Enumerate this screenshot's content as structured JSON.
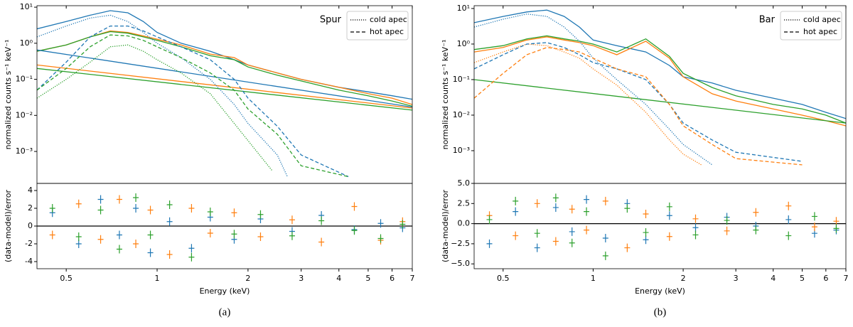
{
  "chart_data": [
    {
      "type": "line",
      "xlog": true,
      "ylog": true,
      "annotation": "Spur",
      "ylabel": "normalized counts s⁻¹ keV⁻¹",
      "xlim": [
        0.4,
        7
      ],
      "ylim": [
        0.00013,
        11
      ],
      "yticks": [
        {
          "value": 0.001,
          "label": "10⁻³"
        },
        {
          "value": 0.01,
          "label": "10⁻²"
        },
        {
          "value": 0.1,
          "label": "10⁻¹"
        },
        {
          "value": 1,
          "label": "10⁰"
        },
        {
          "value": 10,
          "label": "10¹"
        }
      ],
      "legend": [
        {
          "label": "cold apec",
          "dash": "dotted"
        },
        {
          "label": "hot apec",
          "dash": "dashed"
        }
      ],
      "series": [
        {
          "color": "#1f77b4",
          "dash": "solid",
          "x": [
            0.4,
            0.5,
            0.6,
            0.7,
            0.8,
            0.9,
            1,
            1.2,
            1.5,
            1.8,
            2,
            2.5,
            3,
            4,
            5,
            6,
            7
          ],
          "values": [
            2.5,
            4,
            6,
            8,
            7,
            4,
            2,
            1,
            0.6,
            0.35,
            0.25,
            0.15,
            0.1,
            0.06,
            0.045,
            0.035,
            0.028
          ]
        },
        {
          "color": "#ff7f0e",
          "dash": "solid",
          "x": [
            0.4,
            0.5,
            0.6,
            0.7,
            0.8,
            0.9,
            1,
            1.2,
            1.5,
            1.8,
            2,
            2.5,
            3,
            4,
            5,
            6,
            7
          ],
          "values": [
            0.6,
            0.9,
            1.5,
            2.2,
            2,
            1.6,
            1.3,
            0.9,
            0.5,
            0.4,
            0.25,
            0.15,
            0.1,
            0.06,
            0.04,
            0.03,
            0.02
          ]
        },
        {
          "color": "#2ca02c",
          "dash": "solid",
          "x": [
            0.4,
            0.5,
            0.6,
            0.7,
            0.8,
            0.9,
            1,
            1.2,
            1.5,
            1.8,
            2,
            2.5,
            3,
            4,
            5,
            6,
            7
          ],
          "values": [
            0.6,
            0.9,
            1.5,
            2.1,
            1.9,
            1.5,
            1.2,
            0.8,
            0.45,
            0.35,
            0.22,
            0.13,
            0.09,
            0.05,
            0.035,
            0.025,
            0.018
          ]
        },
        {
          "color": "#1f77b4",
          "dash": "solid",
          "x": [
            0.4,
            7
          ],
          "values": [
            0.65,
            0.017
          ]
        },
        {
          "color": "#ff7f0e",
          "dash": "solid",
          "x": [
            0.4,
            7
          ],
          "values": [
            0.25,
            0.016
          ]
        },
        {
          "color": "#2ca02c",
          "dash": "solid",
          "x": [
            0.4,
            7
          ],
          "values": [
            0.2,
            0.014
          ]
        },
        {
          "color": "#1f77b4",
          "dash": "dotted",
          "x": [
            0.4,
            0.5,
            0.6,
            0.7,
            0.8,
            0.9,
            1,
            1.2,
            1.5,
            1.8,
            2,
            2.5,
            2.7
          ],
          "values": [
            1.5,
            3,
            5,
            6,
            4,
            2,
            1,
            0.4,
            0.1,
            0.02,
            0.006,
            0.0008,
            0.0002
          ]
        },
        {
          "color": "#2ca02c",
          "dash": "dotted",
          "x": [
            0.4,
            0.5,
            0.6,
            0.7,
            0.8,
            0.9,
            1,
            1.2,
            1.5,
            1.8,
            2,
            2.4
          ],
          "values": [
            0.03,
            0.1,
            0.3,
            0.8,
            0.9,
            0.6,
            0.35,
            0.15,
            0.04,
            0.006,
            0.002,
            0.0003
          ]
        },
        {
          "color": "#1f77b4",
          "dash": "dashed",
          "x": [
            0.4,
            0.5,
            0.6,
            0.7,
            0.8,
            0.9,
            1,
            1.2,
            1.5,
            1.8,
            2,
            2.5,
            3,
            4.3
          ],
          "values": [
            0.05,
            0.3,
            1.5,
            3,
            3,
            2.2,
            1.5,
            0.8,
            0.35,
            0.1,
            0.03,
            0.005,
            0.0008,
            0.0002
          ]
        },
        {
          "color": "#2ca02c",
          "dash": "dashed",
          "x": [
            0.4,
            0.5,
            0.6,
            0.7,
            0.8,
            0.9,
            1,
            1.2,
            1.5,
            1.8,
            2,
            2.5,
            3,
            4.3
          ],
          "values": [
            0.05,
            0.2,
            0.8,
            1.7,
            1.6,
            1.2,
            0.8,
            0.4,
            0.15,
            0.05,
            0.015,
            0.003,
            0.0004,
            0.0002
          ]
        }
      ]
    },
    {
      "type": "scatter",
      "xlog": true,
      "ylabel": "(data-model)/error",
      "xlabel": "Energy (keV)",
      "caption": "(a)",
      "xlim": [
        0.4,
        7
      ],
      "ylim": [
        -4.8,
        4.8
      ],
      "reference_line": 0,
      "xticks": [
        0.5,
        1,
        2,
        3,
        4,
        5,
        6,
        7
      ],
      "yticks": [
        -4,
        -2,
        0,
        2,
        4
      ],
      "x": [
        0.45,
        0.55,
        0.65,
        0.75,
        0.85,
        0.95,
        1.1,
        1.3,
        1.5,
        1.8,
        2.2,
        2.8,
        3.5,
        4.5,
        5.5,
        6.5
      ],
      "series": [
        {
          "color": "#1f77b4",
          "values": [
            1.5,
            -2,
            3,
            -1,
            2,
            -3,
            0.5,
            -2.5,
            1,
            -1.5,
            0.8,
            -0.6,
            1.2,
            -0.4,
            0.3,
            -0.2
          ]
        },
        {
          "color": "#ff7f0e",
          "values": [
            -1,
            2.5,
            -1.5,
            3,
            -2,
            1.8,
            -3.2,
            2,
            -0.8,
            1.5,
            -1.2,
            0.7,
            -1.8,
            2.2,
            -1.6,
            0.5
          ]
        },
        {
          "color": "#2ca02c",
          "values": [
            2,
            -1.2,
            1.8,
            -2.6,
            3.2,
            -1,
            2.4,
            -3.5,
            1.6,
            -0.9,
            1.3,
            -1.1,
            0.6,
            -0.5,
            -1.4,
            0.2
          ]
        }
      ]
    },
    {
      "type": "line",
      "xlog": true,
      "ylog": true,
      "annotation": "Bar",
      "ylabel": "normalized counts s⁻¹ keV⁻¹",
      "xlim": [
        0.4,
        7
      ],
      "ylim": [
        0.00012,
        12
      ],
      "yticks": [
        {
          "value": 0.001,
          "label": "10⁻³"
        },
        {
          "value": 0.01,
          "label": "10⁻²"
        },
        {
          "value": 0.1,
          "label": "10⁻¹"
        },
        {
          "value": 1,
          "label": "10⁰"
        },
        {
          "value": 10,
          "label": "10¹"
        }
      ],
      "legend": [
        {
          "label": "cold apec",
          "dash": "dotted"
        },
        {
          "label": "hot apec",
          "dash": "dashed"
        }
      ],
      "series": [
        {
          "color": "#1f77b4",
          "dash": "solid",
          "x": [
            0.4,
            0.5,
            0.6,
            0.7,
            0.8,
            0.9,
            1,
            1.2,
            1.5,
            1.8,
            2,
            2.5,
            3,
            4,
            5,
            6,
            7
          ],
          "values": [
            4,
            6,
            8,
            9,
            6,
            3,
            1.3,
            0.9,
            0.6,
            0.25,
            0.12,
            0.08,
            0.05,
            0.03,
            0.02,
            0.012,
            0.008
          ]
        },
        {
          "color": "#ff7f0e",
          "dash": "solid",
          "x": [
            0.4,
            0.5,
            0.6,
            0.7,
            0.8,
            0.9,
            1,
            1.2,
            1.5,
            1.8,
            2,
            2.5,
            3,
            4,
            5,
            6,
            7
          ],
          "values": [
            0.6,
            0.8,
            1.3,
            1.6,
            1.3,
            1.1,
            0.9,
            0.5,
            1.2,
            0.4,
            0.12,
            0.04,
            0.025,
            0.015,
            0.01,
            0.007,
            0.005
          ]
        },
        {
          "color": "#2ca02c",
          "dash": "solid",
          "x": [
            0.4,
            0.5,
            0.6,
            0.7,
            0.8,
            0.9,
            1,
            1.2,
            1.5,
            1.8,
            2,
            2.5,
            3,
            4,
            5,
            6,
            7
          ],
          "values": [
            0.7,
            0.9,
            1.4,
            1.7,
            1.4,
            1.2,
            1,
            0.6,
            1.4,
            0.45,
            0.15,
            0.06,
            0.035,
            0.02,
            0.015,
            0.01,
            0.006
          ]
        },
        {
          "color": "#2ca02c",
          "dash": "solid",
          "x": [
            0.4,
            7
          ],
          "values": [
            0.1,
            0.006
          ]
        },
        {
          "color": "#1f77b4",
          "dash": "dotted",
          "x": [
            0.4,
            0.5,
            0.6,
            0.7,
            0.8,
            0.9,
            1,
            1.2,
            1.5,
            1.8,
            2,
            2.5
          ],
          "values": [
            3,
            5,
            7,
            6,
            3,
            1.2,
            0.4,
            0.1,
            0.02,
            0.004,
            0.0015,
            0.0004
          ]
        },
        {
          "color": "#ff7f0e",
          "dash": "dotted",
          "x": [
            0.4,
            0.5,
            0.6,
            0.7,
            0.8,
            0.9,
            1,
            1.2,
            1.5,
            1.8,
            2,
            2.3
          ],
          "values": [
            0.3,
            0.6,
            1,
            0.9,
            0.6,
            0.4,
            0.2,
            0.07,
            0.012,
            0.002,
            0.0008,
            0.0004
          ]
        },
        {
          "color": "#1f77b4",
          "dash": "dashed",
          "x": [
            0.4,
            0.5,
            0.6,
            0.7,
            0.8,
            0.9,
            1,
            1.2,
            1.5,
            1.8,
            2,
            2.5,
            3,
            5
          ],
          "values": [
            0.2,
            0.5,
            1,
            1.1,
            0.8,
            0.5,
            0.3,
            0.2,
            0.1,
            0.02,
            0.006,
            0.002,
            0.0009,
            0.0005
          ]
        },
        {
          "color": "#ff7f0e",
          "dash": "dashed",
          "x": [
            0.4,
            0.5,
            0.6,
            0.7,
            0.8,
            0.9,
            1,
            1.2,
            1.5,
            1.8,
            2,
            2.5,
            3,
            5
          ],
          "values": [
            0.03,
            0.15,
            0.5,
            0.8,
            0.7,
            0.6,
            0.4,
            0.2,
            0.12,
            0.02,
            0.005,
            0.0015,
            0.0006,
            0.0004
          ]
        }
      ]
    },
    {
      "type": "scatter",
      "xlog": true,
      "ylabel": "(data-model)/error",
      "xlabel": "Energy (keV)",
      "caption": "(b)",
      "xlim": [
        0.4,
        7
      ],
      "ylim": [
        -5.6,
        5
      ],
      "reference_line": 0,
      "xticks": [
        0.5,
        1,
        2,
        3,
        4,
        5,
        6,
        7
      ],
      "yticks": [
        {
          "value": -5,
          "label": "−5.0"
        },
        {
          "value": -2.5,
          "label": "−2.5"
        },
        {
          "value": 0,
          "label": "0.0"
        },
        {
          "value": 2.5,
          "label": "2.5"
        },
        {
          "value": 5,
          "label": "5.0"
        }
      ],
      "x": [
        0.45,
        0.55,
        0.65,
        0.75,
        0.85,
        0.95,
        1.1,
        1.3,
        1.5,
        1.8,
        2.2,
        2.8,
        3.5,
        4.5,
        5.5,
        6.5
      ],
      "series": [
        {
          "color": "#1f77b4",
          "values": [
            -2.5,
            1.5,
            -3,
            2,
            -1,
            3,
            -1.8,
            2.5,
            -2,
            1,
            -0.5,
            0.8,
            -0.3,
            0.5,
            -1.2,
            -0.8
          ]
        },
        {
          "color": "#ff7f0e",
          "values": [
            1,
            -1.5,
            2.5,
            -2.2,
            1.8,
            -0.8,
            2.8,
            -3,
            1.2,
            -1.6,
            0.6,
            -0.9,
            1.4,
            2.2,
            -0.4,
            0.3
          ]
        },
        {
          "color": "#2ca02c",
          "values": [
            0.5,
            2.8,
            -1.2,
            3.2,
            -2.4,
            1.5,
            -4,
            1.9,
            -1.1,
            2.1,
            -1.4,
            0.4,
            -0.8,
            -1.5,
            0.9,
            -0.6
          ]
        }
      ]
    }
  ]
}
